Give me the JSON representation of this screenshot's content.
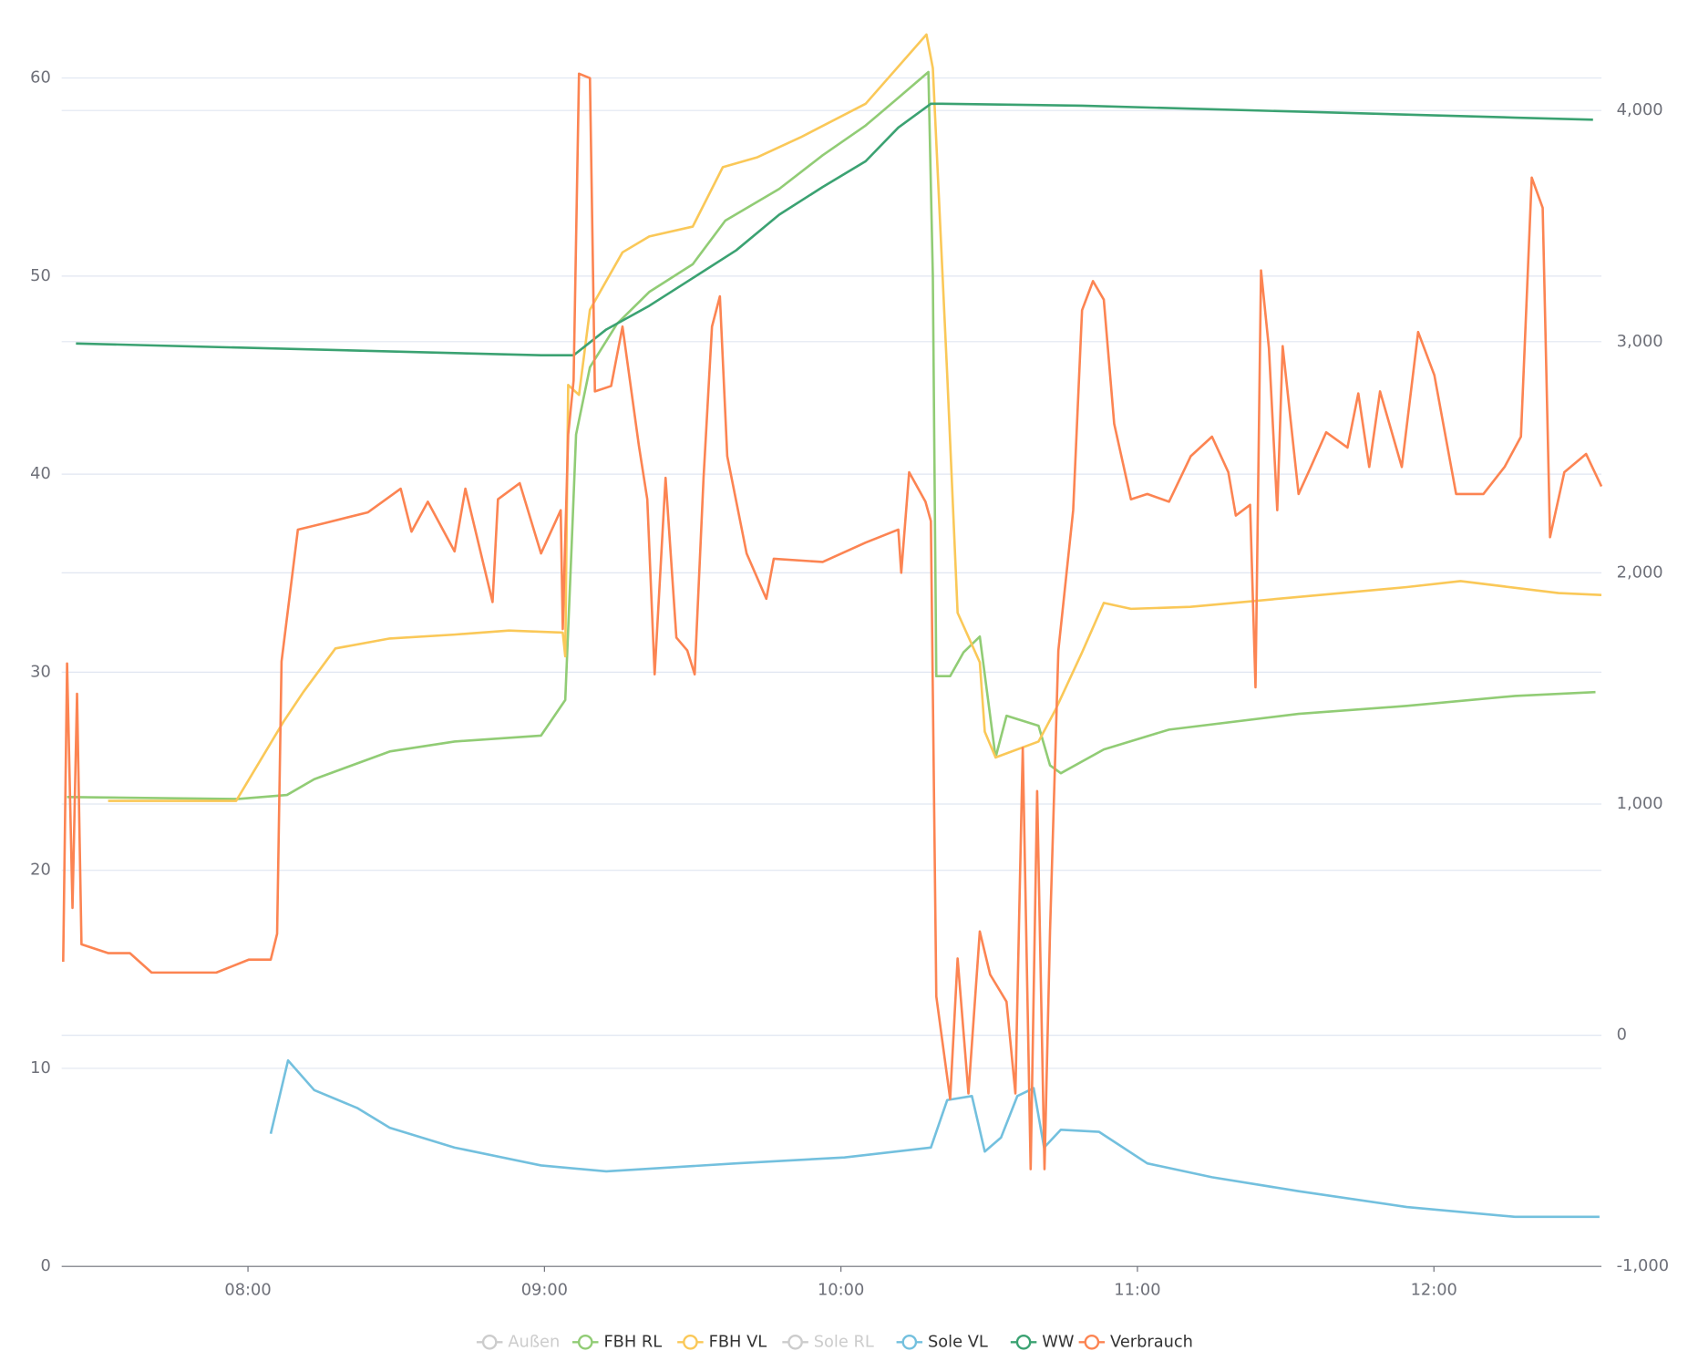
{
  "chart_data": {
    "type": "line",
    "xlim": [
      442.3,
      753.9
    ],
    "xticks": [
      {
        "value": 480,
        "label": "08:00"
      },
      {
        "value": 540,
        "label": "09:00"
      },
      {
        "value": 600,
        "label": "10:00"
      },
      {
        "value": 660,
        "label": "11:00"
      },
      {
        "value": 720,
        "label": "12:00"
      }
    ],
    "ylim": [
      0,
      62.4
    ],
    "yticks": [
      0,
      10,
      20,
      30,
      40,
      50,
      60
    ],
    "y2lim": [
      -1000,
      4346
    ],
    "y2ticks": [
      {
        "value": -1000,
        "label": "-1,000"
      },
      0,
      {
        "value": 1000,
        "label": "1,000"
      },
      {
        "value": 2000,
        "label": "2,000"
      },
      {
        "value": 3000,
        "label": "3,000"
      },
      {
        "value": 4000,
        "label": "4,000"
      }
    ],
    "grid": true,
    "series": [
      {
        "name": "Außen",
        "color": "#cccccc",
        "hidden": true
      },
      {
        "name": "FBH RL",
        "color": "#91cc75",
        "x": [
          443.4,
          478,
          487.9,
          493.4,
          508.7,
          521.8,
          539.3,
          544.2,
          545.5,
          546.4,
          549.2,
          554.7,
          561.2,
          570,
          576.6,
          587.5,
          596.3,
          605,
          611.6,
          617.7,
          618.6,
          619.3,
          622.1,
          624.8,
          628.1,
          631.3,
          633.5,
          640,
          642.3,
          644.5,
          653.2,
          666.4,
          692.6,
          714.5,
          736.4,
          752.7
        ],
        "values": [
          23.7,
          23.6,
          23.8,
          24.6,
          26.0,
          26.5,
          26.8,
          28.6,
          36.4,
          42.0,
          45.4,
          47.6,
          49.2,
          50.6,
          52.8,
          54.4,
          56.1,
          57.6,
          59.0,
          60.3,
          50.0,
          29.8,
          29.8,
          31.0,
          31.8,
          25.7,
          27.8,
          27.3,
          25.3,
          24.9,
          26.1,
          27.1,
          27.9,
          28.3,
          28.8,
          29.0
        ]
      },
      {
        "name": "FBH VL",
        "color": "#fac858",
        "x": [
          451.7,
          477.6,
          487.2,
          491.2,
          497.7,
          508.7,
          521.8,
          532.8,
          543.7,
          544.2,
          544.8,
          547,
          549.2,
          555.8,
          561.2,
          570,
          576.1,
          583.1,
          591.8,
          605,
          617.3,
          618.6,
          621.5,
          623.6,
          628.1,
          629.1,
          631.3,
          640,
          643.4,
          648.8,
          653.2,
          658.7,
          670.7,
          692.6,
          714.5,
          725.4,
          745.2,
          753.9
        ],
        "values": [
          23.5,
          23.5,
          27.5,
          29.0,
          31.2,
          31.7,
          31.9,
          32.1,
          32.0,
          30.8,
          44.5,
          44.0,
          48.3,
          51.2,
          52.0,
          52.5,
          55.5,
          56.0,
          57.0,
          58.7,
          62.2,
          60.5,
          45.0,
          33.0,
          30.5,
          27.0,
          25.7,
          26.5,
          28.1,
          31.0,
          33.5,
          33.2,
          33.3,
          33.8,
          34.3,
          34.6,
          34.0,
          33.9
        ]
      },
      {
        "name": "Sole RL",
        "color": "#cccccc",
        "hidden": true
      },
      {
        "name": "Sole VL",
        "color": "#73c0de",
        "x": [
          484.6,
          488.1,
          493.4,
          502.1,
          508.7,
          521.8,
          539.3,
          552.5,
          578.8,
          600.7,
          618.2,
          621.5,
          626.5,
          629.1,
          632.4,
          635.7,
          639,
          641.1,
          644.5,
          652.2,
          662,
          675.1,
          692.6,
          714.5,
          736.4,
          753.5
        ],
        "values": [
          6.7,
          10.4,
          8.9,
          8.0,
          7.0,
          6.0,
          5.1,
          4.8,
          5.2,
          5.5,
          6.0,
          8.4,
          8.6,
          5.8,
          6.5,
          8.6,
          9.0,
          6.0,
          6.9,
          6.8,
          5.2,
          4.5,
          3.8,
          3.0,
          2.5,
          2.5
        ]
      },
      {
        "name": "WW",
        "color": "#3ba272",
        "x": [
          445.2,
          539.3,
          545.9,
          552.5,
          561.2,
          570,
          578.8,
          587.5,
          596.3,
          605,
          611.6,
          618.2,
          620.4,
          648.8,
          692.6,
          736.4,
          752.2
        ],
        "values": [
          46.6,
          46.0,
          46.0,
          47.3,
          48.5,
          49.9,
          51.3,
          53.1,
          54.5,
          55.8,
          57.5,
          58.7,
          58.7,
          58.6,
          58.3,
          58.0,
          57.9
        ]
      },
      {
        "name": "Verbrauch",
        "color": "#fc8452",
        "axis": "y2",
        "x": [
          442.6,
          443.4,
          444.5,
          445.4,
          446.3,
          451.7,
          456.1,
          460.5,
          473.6,
          480.2,
          484.6,
          485.9,
          486.8,
          490.1,
          495.5,
          504.3,
          510.9,
          513.1,
          516.4,
          521.8,
          524,
          529.5,
          530.6,
          535,
          539.3,
          543.3,
          543.7,
          544.8,
          545.9,
          547,
          549.2,
          550.2,
          553.5,
          555.8,
          559.1,
          560.8,
          562.3,
          564.5,
          566.7,
          568.9,
          570.4,
          572.2,
          573.9,
          575.5,
          577,
          580.9,
          584.9,
          586.4,
          596.3,
          605,
          611.6,
          612.2,
          613.8,
          617.1,
          618.2,
          619.3,
          622.1,
          623.6,
          625.8,
          628.1,
          630.2,
          633.5,
          635.3,
          636.8,
          638.4,
          639.7,
          641.2,
          642.3,
          644,
          647,
          648.8,
          651,
          653.2,
          655.3,
          658.7,
          662,
          666.4,
          670.8,
          675.1,
          678.4,
          679.9,
          682.8,
          683.9,
          685,
          686.6,
          688.3,
          689.4,
          692.6,
          694.9,
          698.2,
          702.5,
          704.7,
          706.9,
          709.1,
          713.5,
          716.8,
          720.1,
          724.5,
          730,
          734.3,
          737.6,
          739.8,
          742,
          743.5,
          746.4,
          750.8,
          753.9
        ],
        "values": [
          318,
          1608,
          551,
          1477,
          393,
          355,
          355,
          271,
          271,
          327,
          327,
          439,
          1617,
          2187,
          2215,
          2262,
          2364,
          2178,
          2308,
          2093,
          2364,
          1874,
          2318,
          2388,
          2084,
          2271,
          1757,
          2598,
          2832,
          4159,
          4140,
          2785,
          2808,
          3065,
          2551,
          2318,
          1561,
          2411,
          1720,
          1664,
          1561,
          2411,
          3065,
          3196,
          2505,
          2084,
          1888,
          2061,
          2047,
          2131,
          2187,
          2000,
          2435,
          2308,
          2224,
          168,
          -276,
          332,
          -252,
          449,
          262,
          145,
          -252,
          1243,
          -579,
          1056,
          -579,
          449,
          1664,
          2271,
          3136,
          3262,
          3182,
          2645,
          2318,
          2341,
          2308,
          2505,
          2589,
          2435,
          2248,
          2294,
          1505,
          3308,
          2972,
          2271,
          2981,
          2341,
          2449,
          2608,
          2542,
          2776,
          2458,
          2785,
          2458,
          3042,
          2855,
          2341,
          2341,
          2458,
          2589,
          3710,
          3579,
          2154,
          2435,
          2514,
          2374
        ]
      }
    ]
  }
}
